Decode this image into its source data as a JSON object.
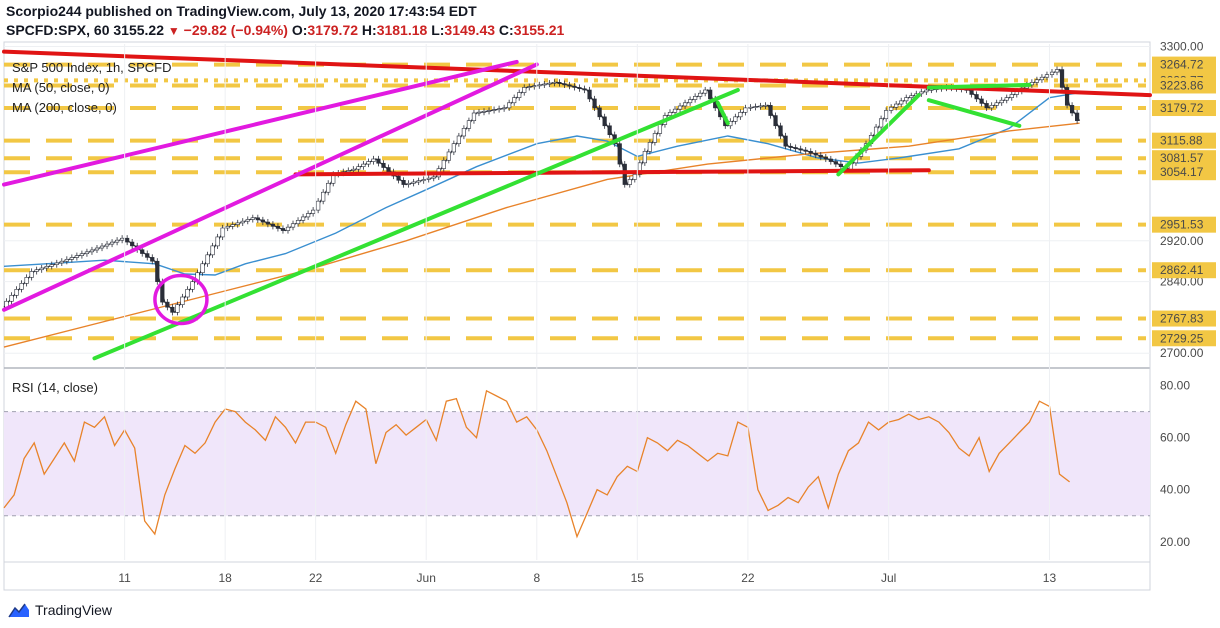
{
  "header": {
    "publisher_line": "Scorpio244 published on TradingView.com, July 13, 2020 17:43:54 EDT",
    "symbol": "SPCFD:SPX, 60",
    "last": "3155.22",
    "change_arrow": "▼",
    "change": "−29.82 (−0.94%)",
    "o_label": "O:",
    "o_value": "3179.72",
    "h_label": "H:",
    "h_value": "3181.18",
    "l_label": "L:",
    "l_value": "3149.43",
    "c_label": "C:",
    "c_value": "3155.21"
  },
  "legend": {
    "title": "S&P 500 Index, 1h, SPCFD",
    "ma50": "MA (50, close, 0)",
    "ma200": "MA (200, close, 0)",
    "rsi": "RSI (14, close)"
  },
  "brand": {
    "name": "TradingView",
    "icon": "tradingview-logo-icon"
  },
  "colors": {
    "up_candle": "#26a69a",
    "down_candle": "#ef5350",
    "candle_neutral": "#2a2e39",
    "ma50": "#3a8fd0",
    "ma200": "#e8832a",
    "rsi_line": "#e8832a",
    "rsi_band": "#f0e6fa",
    "trend_red": "#e01414",
    "trend_magenta": "#e21ae0",
    "trend_green": "#33e133",
    "level_yellow": "#f2c744",
    "grid": "#eef0f3"
  },
  "chart_data": [
    {
      "type": "line",
      "name": "price",
      "title": "S&P 500 Index, 1h, SPCFD",
      "ylim": [
        2675,
        3305
      ],
      "price_axis_ticks": [
        3300,
        2920,
        2840,
        2700
      ],
      "level_labels": [
        3264.72,
        3233.77,
        3223.86,
        3179.72,
        3115.88,
        3081.57,
        3054.17,
        2951.53,
        2862.41,
        2767.83,
        2729.25
      ],
      "x_tick_labels": [
        "11",
        "18",
        "22",
        "Jun",
        "8",
        "15",
        "22",
        "Jul",
        "13"
      ],
      "x_tick_index": [
        12,
        22,
        31,
        42,
        53,
        63,
        74,
        88,
        104
      ],
      "x_range_index": [
        0,
        114
      ],
      "series": [
        {
          "name": "MA (50, close, 0)",
          "values": [
            [
              0,
              2870
            ],
            [
              5,
              2876
            ],
            [
              10,
              2882
            ],
            [
              15,
              2875
            ],
            [
              18,
              2855
            ],
            [
              21,
              2853
            ],
            [
              24,
              2875
            ],
            [
              28,
              2895
            ],
            [
              33,
              2935
            ],
            [
              38,
              2985
            ],
            [
              42,
              3020
            ],
            [
              47,
              3065
            ],
            [
              53,
              3110
            ],
            [
              57,
              3125
            ],
            [
              60,
              3115
            ],
            [
              63,
              3085
            ],
            [
              67,
              3105
            ],
            [
              72,
              3125
            ],
            [
              76,
              3110
            ],
            [
              81,
              3082
            ],
            [
              85,
              3072
            ],
            [
              89,
              3082
            ],
            [
              95,
              3100
            ],
            [
              100,
              3140
            ],
            [
              104,
              3200
            ],
            [
              107,
              3210
            ]
          ]
        },
        {
          "name": "MA (200, close, 0)",
          "values": [
            [
              0,
              2712
            ],
            [
              10,
              2762
            ],
            [
              20,
              2812
            ],
            [
              30,
              2862
            ],
            [
              40,
              2920
            ],
            [
              50,
              2985
            ],
            [
              60,
              3040
            ],
            [
              70,
              3070
            ],
            [
              80,
              3090
            ],
            [
              90,
              3105
            ],
            [
              100,
              3135
            ],
            [
              107,
              3150
            ]
          ]
        },
        {
          "name": "price",
          "values": [
            [
              0,
              2790
            ],
            [
              3,
              2860
            ],
            [
              6,
              2880
            ],
            [
              9,
              2902
            ],
            [
              12,
              2925
            ],
            [
              15,
              2880
            ],
            [
              16,
              2800
            ],
            [
              17,
              2780
            ],
            [
              19,
              2840
            ],
            [
              22,
              2945
            ],
            [
              25,
              2965
            ],
            [
              28,
              2940
            ],
            [
              31,
              2980
            ],
            [
              33,
              3050
            ],
            [
              35,
              3060
            ],
            [
              37,
              3080
            ],
            [
              40,
              3030
            ],
            [
              43,
              3045
            ],
            [
              45,
              3110
            ],
            [
              47,
              3170
            ],
            [
              50,
              3180
            ],
            [
              52,
              3220
            ],
            [
              55,
              3230
            ],
            [
              58,
              3215
            ],
            [
              61,
              3110
            ],
            [
              62,
              3030
            ],
            [
              63,
              3050
            ],
            [
              64,
              3095
            ],
            [
              66,
              3165
            ],
            [
              68,
              3190
            ],
            [
              70,
              3215
            ],
            [
              72,
              3145
            ],
            [
              74,
              3180
            ],
            [
              76,
              3185
            ],
            [
              78,
              3105
            ],
            [
              80,
              3095
            ],
            [
              82,
              3080
            ],
            [
              84,
              3060
            ],
            [
              86,
              3110
            ],
            [
              88,
              3175
            ],
            [
              90,
              3200
            ],
            [
              92,
              3215
            ],
            [
              94,
              3220
            ],
            [
              96,
              3215
            ],
            [
              98,
              3180
            ],
            [
              100,
              3200
            ],
            [
              102,
              3225
            ],
            [
              104,
              3245
            ],
            [
              105,
              3255
            ],
            [
              106,
              3185
            ],
            [
              107,
              3155
            ]
          ]
        }
      ],
      "level_lines": [
        {
          "y": 3264.72,
          "style": "dashed"
        },
        {
          "y": 3233.77,
          "style": "dotted"
        },
        {
          "y": 3223.86,
          "style": "dashed"
        },
        {
          "y": 3179.72,
          "style": "dashed"
        },
        {
          "y": 3115.88,
          "style": "dashed"
        },
        {
          "y": 3081.57,
          "style": "dashed"
        },
        {
          "y": 3054.17,
          "style": "dashed"
        },
        {
          "y": 2951.53,
          "style": "dashed"
        },
        {
          "y": 2862.41,
          "style": "dashed"
        },
        {
          "y": 2767.83,
          "style": "dashed"
        },
        {
          "y": 2729.25,
          "style": "dashed"
        }
      ],
      "trendlines": [
        {
          "color": "red",
          "from": [
            0,
            3290
          ],
          "to": [
            114,
            3205
          ]
        },
        {
          "color": "red",
          "from": [
            29,
            3050
          ],
          "to": [
            92,
            3058
          ]
        },
        {
          "color": "magenta",
          "from": [
            0,
            3030
          ],
          "to": [
            51,
            3270
          ]
        },
        {
          "color": "magenta",
          "from": [
            0,
            2785
          ],
          "to": [
            53,
            3265
          ]
        },
        {
          "color": "green",
          "from": [
            9,
            2690
          ],
          "to": [
            73,
            3215
          ]
        },
        {
          "color": "green",
          "from": [
            71,
            3190
          ],
          "to": [
            72,
            3150
          ]
        },
        {
          "color": "green",
          "from": [
            83,
            3050
          ],
          "to": [
            91,
            3205
          ]
        },
        {
          "color": "green",
          "from": [
            92,
            3220
          ],
          "to": [
            102,
            3225
          ]
        },
        {
          "color": "green",
          "from": [
            92,
            3195
          ],
          "to": [
            101,
            3145
          ]
        }
      ],
      "annotations": [
        {
          "shape": "circle",
          "center": [
            17.6,
            2805
          ]
        }
      ]
    },
    {
      "type": "line",
      "name": "rsi",
      "title": "RSI (14, close)",
      "ylim": [
        13,
        86
      ],
      "y_ticks": [
        80.0,
        60.0,
        40.0,
        20.0
      ],
      "band": [
        30,
        70
      ],
      "x_range_index": [
        0,
        114
      ],
      "series": [
        {
          "name": "RSI (14, close)",
          "values": [
            [
              0,
              33
            ],
            [
              1,
              38
            ],
            [
              2,
              52
            ],
            [
              3,
              58
            ],
            [
              4,
              46
            ],
            [
              5,
              52
            ],
            [
              6,
              58
            ],
            [
              7,
              51
            ],
            [
              8,
              66
            ],
            [
              9,
              64
            ],
            [
              10,
              68
            ],
            [
              11,
              57
            ],
            [
              12,
              63
            ],
            [
              13,
              56
            ],
            [
              14,
              28
            ],
            [
              15,
              23
            ],
            [
              16,
              38
            ],
            [
              17,
              48
            ],
            [
              18,
              57
            ],
            [
              19,
              54
            ],
            [
              20,
              58
            ],
            [
              21,
              66
            ],
            [
              22,
              71
            ],
            [
              23,
              70
            ],
            [
              24,
              66
            ],
            [
              25,
              63
            ],
            [
              26,
              59
            ],
            [
              27,
              68
            ],
            [
              28,
              64
            ],
            [
              29,
              58
            ],
            [
              30,
              66
            ],
            [
              31,
              66
            ],
            [
              32,
              64
            ],
            [
              33,
              54
            ],
            [
              34,
              65
            ],
            [
              35,
              74
            ],
            [
              36,
              71
            ],
            [
              37,
              50
            ],
            [
              38,
              62
            ],
            [
              39,
              65
            ],
            [
              40,
              61
            ],
            [
              41,
              64
            ],
            [
              42,
              67
            ],
            [
              43,
              59
            ],
            [
              44,
              74
            ],
            [
              45,
              75
            ],
            [
              46,
              64
            ],
            [
              47,
              60
            ],
            [
              48,
              78
            ],
            [
              49,
              76
            ],
            [
              50,
              74
            ],
            [
              51,
              66
            ],
            [
              52,
              68
            ],
            [
              53,
              63
            ],
            [
              54,
              55
            ],
            [
              55,
              45
            ],
            [
              56,
              35
            ],
            [
              57,
              22
            ],
            [
              58,
              31
            ],
            [
              59,
              40
            ],
            [
              60,
              38
            ],
            [
              61,
              45
            ],
            [
              62,
              49
            ],
            [
              63,
              47
            ],
            [
              64,
              60
            ],
            [
              65,
              58
            ],
            [
              66,
              55
            ],
            [
              67,
              59
            ],
            [
              68,
              57
            ],
            [
              69,
              54
            ],
            [
              70,
              51
            ],
            [
              71,
              54
            ],
            [
              72,
              53
            ],
            [
              73,
              66
            ],
            [
              74,
              64
            ],
            [
              75,
              40
            ],
            [
              76,
              32
            ],
            [
              77,
              34
            ],
            [
              78,
              37
            ],
            [
              79,
              35
            ],
            [
              80,
              41
            ],
            [
              81,
              45
            ],
            [
              82,
              33
            ],
            [
              83,
              46
            ],
            [
              84,
              55
            ],
            [
              85,
              58
            ],
            [
              86,
              66
            ],
            [
              87,
              63
            ],
            [
              88,
              66
            ],
            [
              89,
              67
            ],
            [
              90,
              69
            ],
            [
              91,
              67
            ],
            [
              92,
              68
            ],
            [
              93,
              66
            ],
            [
              94,
              62
            ],
            [
              95,
              56
            ],
            [
              96,
              53
            ],
            [
              97,
              60
            ],
            [
              98,
              47
            ],
            [
              99,
              54
            ],
            [
              100,
              58
            ],
            [
              101,
              62
            ],
            [
              102,
              66
            ],
            [
              103,
              74
            ],
            [
              104,
              72
            ],
            [
              105,
              46
            ],
            [
              106,
              43
            ]
          ]
        }
      ]
    }
  ]
}
